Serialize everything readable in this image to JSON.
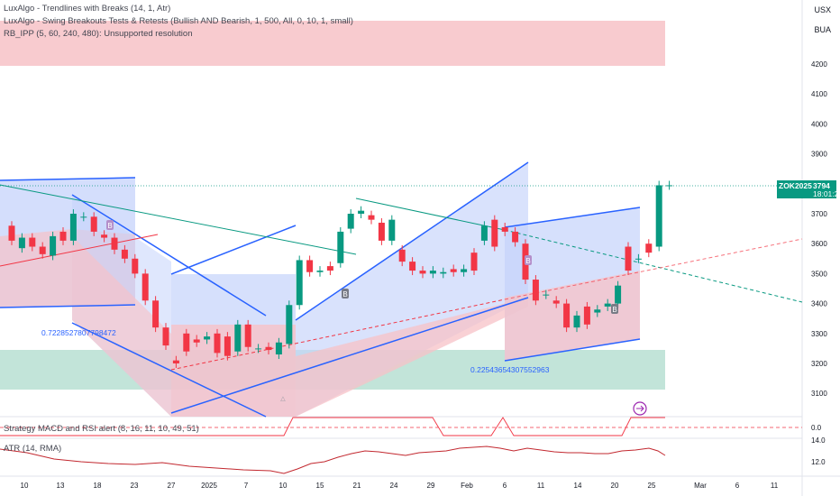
{
  "header": {
    "indicators": [
      "LuxAlgo - Trendlines with Breaks (14, 1, Atr)",
      "LuxAlgo - Swing Breakouts Tests & Retests (Bullish AND Bearish, 1, 500, All, 0, 10, 1, small)",
      "RB_IPP (5, 60, 240, 480): Unsupported resolution"
    ],
    "currency": "USX",
    "exchange": "BUA"
  },
  "price_axis": {
    "labels": [
      "4200",
      "4100",
      "4000",
      "3900",
      "3800",
      "3700",
      "3600",
      "3500",
      "3400",
      "3300",
      "3200",
      "3100"
    ]
  },
  "last_price": {
    "symbol": "ZOK2025",
    "value": "3794",
    "countdown": "18:01:20",
    "color": "#089981"
  },
  "time_axis": {
    "labels": [
      "10",
      "13",
      "18",
      "23",
      "27",
      "2025",
      "7",
      "10",
      "15",
      "21",
      "24",
      "29",
      "Feb",
      "6",
      "11",
      "14",
      "20",
      "25",
      "Mar",
      "6",
      "11"
    ]
  },
  "annotations": {
    "range_low_label": "0.7228527807798472",
    "range_high_label": "0.22543654307552963",
    "breakout_marker": "B"
  },
  "lower_panels": {
    "strategy_label": "Strategy MACD and RSI alert (8, 16, 11, 10, 49, 51)",
    "strategy_level": "0.0",
    "atr_label": "ATR (14, RMA)",
    "atr_levels": [
      "14.0",
      "12.0"
    ]
  },
  "colors": {
    "up": "#089981",
    "down": "#f23645",
    "blue": "#2962ff",
    "blue_fill": "#c5d3fb",
    "red_fill": "#f7c2c7",
    "green_fill": "#b7dfd2",
    "atr_line": "#c2282f"
  },
  "chart_data": {
    "type": "candlestick",
    "price_scale": [
      3100,
      4200
    ],
    "candles": [
      {
        "o": 3660,
        "c": 3610
      },
      {
        "o": 3585,
        "c": 3620
      },
      {
        "o": 3620,
        "c": 3590
      },
      {
        "o": 3590,
        "c": 3565
      },
      {
        "o": 3560,
        "c": 3625
      },
      {
        "o": 3640,
        "c": 3610
      },
      {
        "o": 3610,
        "c": 3700
      },
      {
        "o": 3690,
        "c": 3690
      },
      {
        "o": 3690,
        "c": 3640
      },
      {
        "o": 3630,
        "c": 3620
      },
      {
        "o": 3620,
        "c": 3580
      },
      {
        "o": 3580,
        "c": 3550
      },
      {
        "o": 3550,
        "c": 3500
      },
      {
        "o": 3500,
        "c": 3410
      },
      {
        "o": 3410,
        "c": 3320
      },
      {
        "o": 3320,
        "c": 3260
      },
      {
        "o": 3210,
        "c": 3200
      },
      {
        "o": 3300,
        "c": 3240
      },
      {
        "o": 3280,
        "c": 3270
      },
      {
        "o": 3280,
        "c": 3290
      },
      {
        "o": 3300,
        "c": 3235
      },
      {
        "o": 3290,
        "c": 3225
      },
      {
        "o": 3240,
        "c": 3330
      },
      {
        "o": 3330,
        "c": 3255
      },
      {
        "o": 3250,
        "c": 3250
      },
      {
        "o": 3255,
        "c": 3245
      },
      {
        "o": 3230,
        "c": 3270
      },
      {
        "o": 3265,
        "c": 3395
      },
      {
        "o": 3395,
        "c": 3545
      },
      {
        "o": 3545,
        "c": 3505
      },
      {
        "o": 3505,
        "c": 3510
      },
      {
        "o": 3525,
        "c": 3510
      },
      {
        "o": 3535,
        "c": 3640
      },
      {
        "o": 3650,
        "c": 3700
      },
      {
        "o": 3700,
        "c": 3710
      },
      {
        "o": 3695,
        "c": 3680
      },
      {
        "o": 3670,
        "c": 3610
      },
      {
        "o": 3610,
        "c": 3680
      },
      {
        "o": 3580,
        "c": 3540
      },
      {
        "o": 3540,
        "c": 3510
      },
      {
        "o": 3510,
        "c": 3500
      },
      {
        "o": 3500,
        "c": 3510
      },
      {
        "o": 3500,
        "c": 3505
      },
      {
        "o": 3515,
        "c": 3505
      },
      {
        "o": 3505,
        "c": 3515
      },
      {
        "o": 3570,
        "c": 3510
      },
      {
        "o": 3610,
        "c": 3660
      },
      {
        "o": 3680,
        "c": 3590
      },
      {
        "o": 3655,
        "c": 3640
      },
      {
        "o": 3640,
        "c": 3605
      },
      {
        "o": 3600,
        "c": 3480
      },
      {
        "o": 3480,
        "c": 3410
      },
      {
        "o": 3430,
        "c": 3430
      },
      {
        "o": 3410,
        "c": 3400
      },
      {
        "o": 3400,
        "c": 3320
      },
      {
        "o": 3320,
        "c": 3360
      },
      {
        "o": 3390,
        "c": 3330
      },
      {
        "o": 3370,
        "c": 3380
      },
      {
        "o": 3390,
        "c": 3400
      },
      {
        "o": 3400,
        "c": 3460
      },
      {
        "o": 3590,
        "c": 3510
      },
      {
        "o": 3550,
        "c": 3550
      },
      {
        "o": 3600,
        "c": 3570
      },
      {
        "o": 3590,
        "c": 3795
      },
      {
        "o": 3795,
        "c": 3795
      }
    ]
  }
}
